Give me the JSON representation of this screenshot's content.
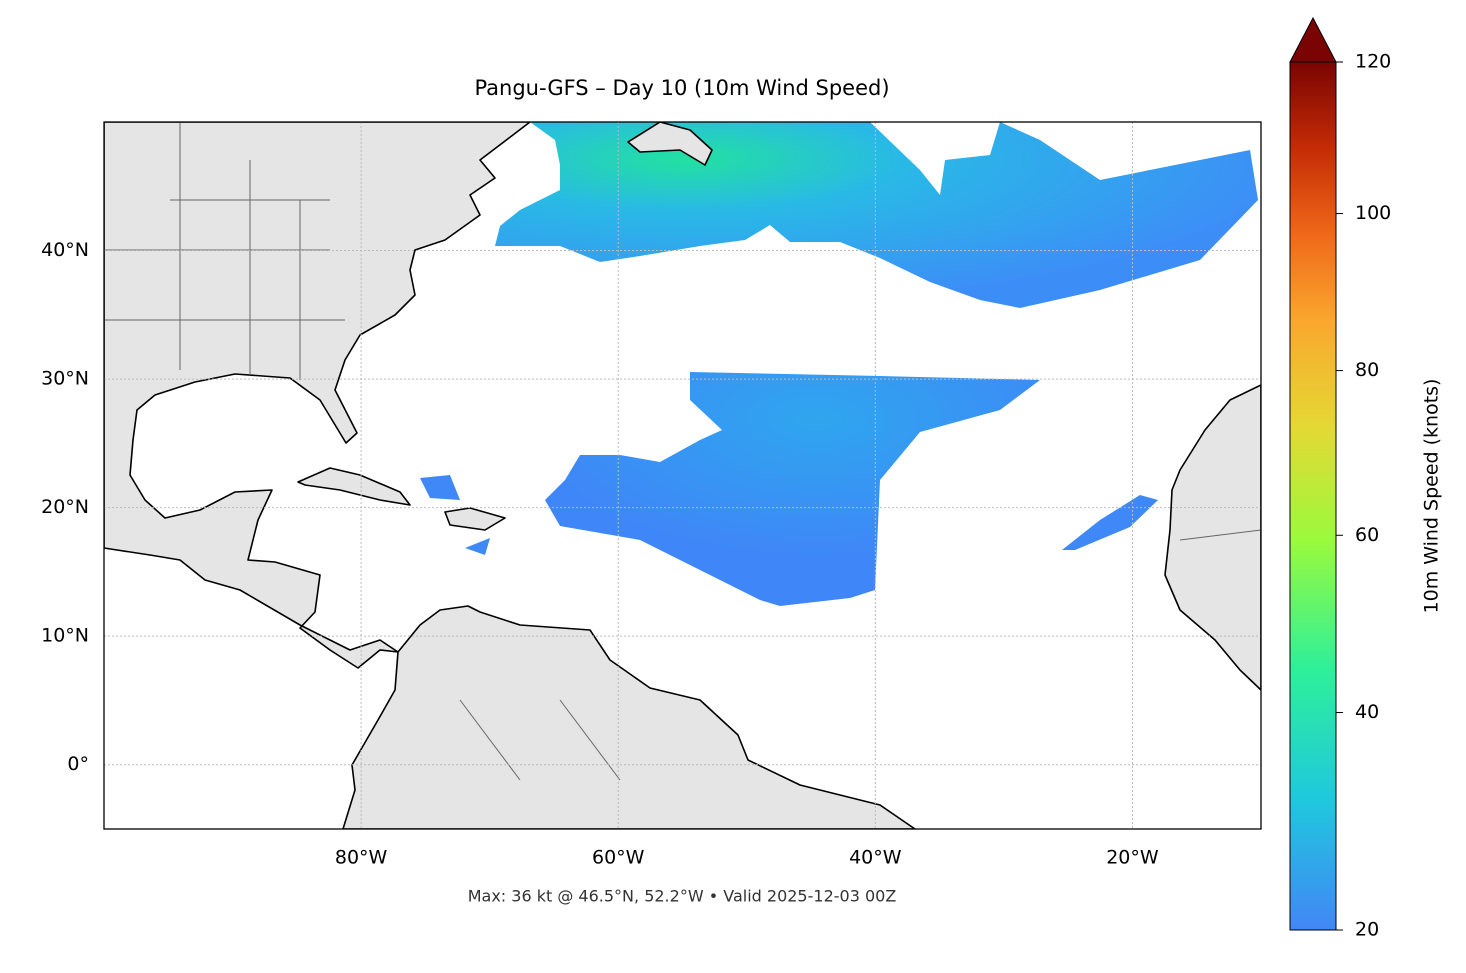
{
  "chart_data": {
    "type": "map",
    "title": "Pangu-GFS – Day 10 (10m Wind Speed)",
    "footnote": "Max: 36 kt @ 46.5°N, 52.2°W • Valid 2025-12-03 00Z",
    "xlim": [
      -100,
      -10
    ],
    "ylim": [
      -5,
      50
    ],
    "xticks": [
      {
        "value": -80,
        "label": "80°W"
      },
      {
        "value": -60,
        "label": "60°W"
      },
      {
        "value": -40,
        "label": "40°W"
      },
      {
        "value": -20,
        "label": "20°W"
      }
    ],
    "yticks": [
      {
        "value": 0,
        "label": "0°"
      },
      {
        "value": 10,
        "label": "10°N"
      },
      {
        "value": 20,
        "label": "20°N"
      },
      {
        "value": 30,
        "label": "30°N"
      },
      {
        "value": 40,
        "label": "40°N"
      }
    ],
    "grid": true,
    "colorbar": {
      "label": "10m Wind Speed (knots)",
      "lim": [
        20,
        120
      ],
      "ticks": [
        20,
        40,
        60,
        80,
        100,
        120
      ],
      "extend": "max",
      "gamma": 0.86
    }
  }
}
